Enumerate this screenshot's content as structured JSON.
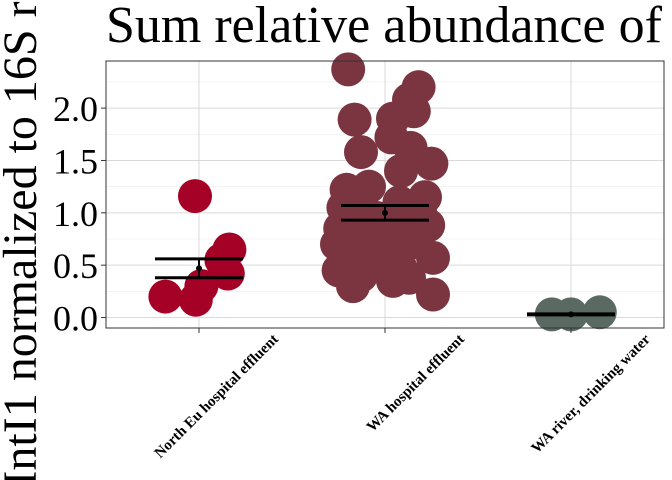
{
  "chart_data": {
    "type": "scatter",
    "title": "Sum relative abundance of",
    "ylabel": "IntI1 normalized to 16S r",
    "xlabel": "",
    "categories": [
      "North Eu hospital effluent",
      "WA hospital effluent",
      "WA river, drinking water"
    ],
    "ylim": [
      -0.1,
      2.45
    ],
    "yticks": [
      0.0,
      0.5,
      1.0,
      1.5,
      2.0
    ],
    "ytick_labels": [
      "0.0",
      "0.5",
      "1.0",
      "1.5",
      "2.0"
    ],
    "grid": true,
    "legend": "none",
    "colors": {
      "North Eu hospital effluent": "#a50026",
      "WA hospital effluent": "#7b3540",
      "WA river, drinking water": "#5a6a62",
      "error_bar": "#000000",
      "panel_border": "#333333",
      "grid_major": "#d9d9d9",
      "grid_minor": "#ececec"
    },
    "series": [
      {
        "category": "North Eu hospital effluent",
        "points": [
          {
            "dx": -0.05,
            "y": 1.16
          },
          {
            "dx": 0.38,
            "y": 0.65
          },
          {
            "dx": 0.28,
            "y": 0.55
          },
          {
            "dx": 0.36,
            "y": 0.42
          },
          {
            "dx": 0.03,
            "y": 0.3
          },
          {
            "dx": -0.42,
            "y": 0.2
          },
          {
            "dx": -0.04,
            "y": 0.17
          }
        ],
        "mean": 0.47,
        "error": [
          0.38,
          0.56
        ]
      },
      {
        "category": "WA hospital effluent",
        "points": [
          {
            "dx": -0.46,
            "y": 2.37
          },
          {
            "dx": 0.42,
            "y": 2.2
          },
          {
            "dx": 0.3,
            "y": 2.08
          },
          {
            "dx": 0.36,
            "y": 1.97
          },
          {
            "dx": 0.1,
            "y": 1.9
          },
          {
            "dx": -0.38,
            "y": 1.89
          },
          {
            "dx": 0.08,
            "y": 1.72
          },
          {
            "dx": 0.32,
            "y": 1.62
          },
          {
            "dx": -0.3,
            "y": 1.58
          },
          {
            "dx": 0.58,
            "y": 1.47
          },
          {
            "dx": 0.2,
            "y": 1.4
          },
          {
            "dx": -0.48,
            "y": 1.22
          },
          {
            "dx": -0.2,
            "y": 1.25
          },
          {
            "dx": 0.5,
            "y": 1.15
          },
          {
            "dx": -0.52,
            "y": 1.05
          },
          {
            "dx": 0.18,
            "y": 1.1
          },
          {
            "dx": 0.44,
            "y": 1.0
          },
          {
            "dx": -0.3,
            "y": 0.98
          },
          {
            "dx": -0.1,
            "y": 0.95
          },
          {
            "dx": 0.26,
            "y": 0.92
          },
          {
            "dx": -0.56,
            "y": 0.85
          },
          {
            "dx": 0.54,
            "y": 0.88
          },
          {
            "dx": 0.05,
            "y": 0.8
          },
          {
            "dx": -0.6,
            "y": 0.7
          },
          {
            "dx": 0.3,
            "y": 0.75
          },
          {
            "dx": -0.3,
            "y": 0.68
          },
          {
            "dx": 0.6,
            "y": 0.57
          },
          {
            "dx": -0.14,
            "y": 0.56
          },
          {
            "dx": 0.18,
            "y": 0.5
          },
          {
            "dx": -0.58,
            "y": 0.45
          },
          {
            "dx": -0.3,
            "y": 0.4
          },
          {
            "dx": 0.3,
            "y": 0.38
          },
          {
            "dx": 0.1,
            "y": 0.35
          },
          {
            "dx": -0.4,
            "y": 0.3
          },
          {
            "dx": 0.6,
            "y": 0.22
          },
          {
            "dx": -0.05,
            "y": 0.62
          },
          {
            "dx": 0.4,
            "y": 0.72
          }
        ],
        "mean": 1.0,
        "error": [
          0.93,
          1.07
        ]
      },
      {
        "category": "WA river, drinking water",
        "points": [
          {
            "dx": -0.24,
            "y": 0.03
          },
          {
            "dx": 0.0,
            "y": 0.03
          },
          {
            "dx": 0.36,
            "y": 0.05
          }
        ],
        "mean": 0.03,
        "error": [
          0.025,
          0.04
        ]
      }
    ]
  }
}
